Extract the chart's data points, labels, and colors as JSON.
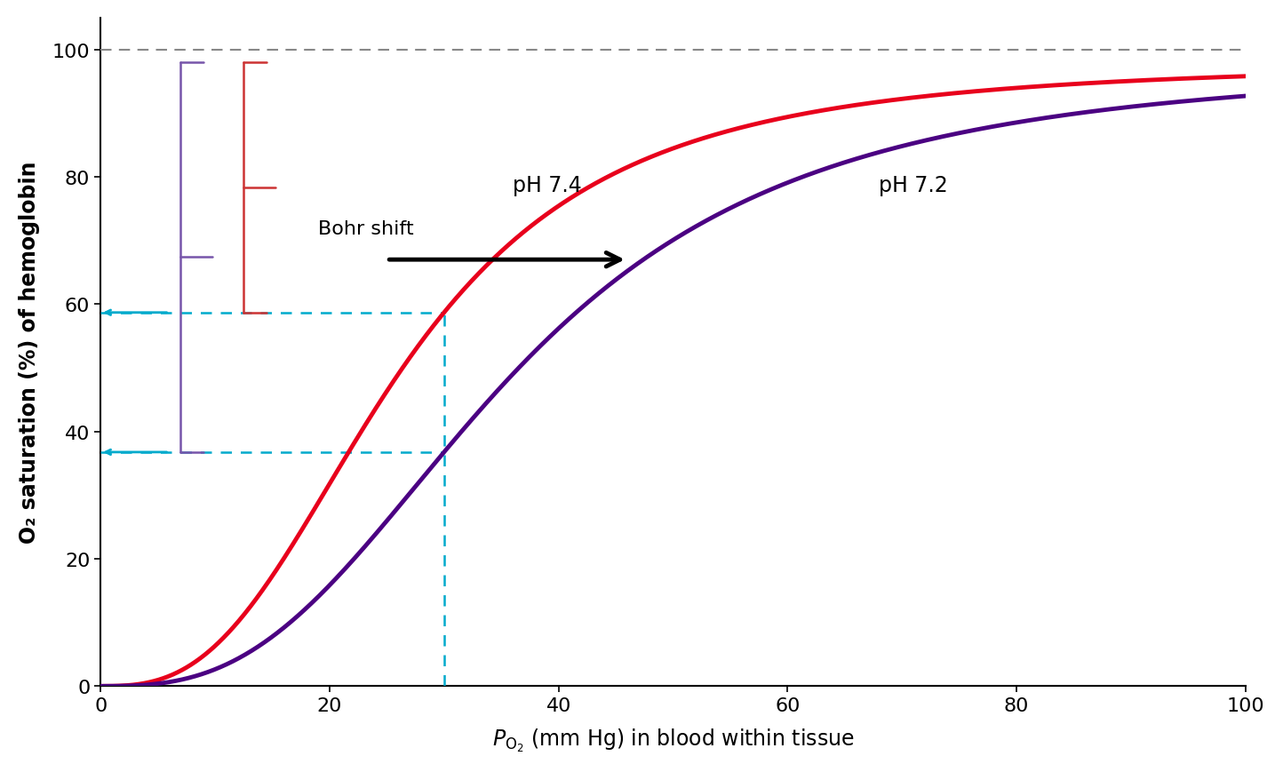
{
  "ylabel": "O₂ saturation (%) of hemoglobin",
  "xlim": [
    0,
    100
  ],
  "ylim": [
    0,
    105
  ],
  "color_ph74": "#e8001c",
  "color_ph72": "#4b0082",
  "color_dashed_horiz": "#888888",
  "color_cyan": "#00aacc",
  "color_bracket_red": "#cc3333",
  "color_bracket_purple": "#7755aa",
  "label_ph74": "pH 7.4",
  "label_ph72": "pH 7.2",
  "label_bohr": "Bohr shift",
  "n_ph74": 2.8,
  "p50_ph74": 26,
  "n_ph72": 2.8,
  "p50_ph72": 36,
  "satmax": 98,
  "yticks": [
    0,
    20,
    40,
    60,
    80,
    100
  ],
  "xticks": [
    0,
    20,
    40,
    60,
    80,
    100
  ],
  "x_vert": 30,
  "bg_color": "#ffffff"
}
